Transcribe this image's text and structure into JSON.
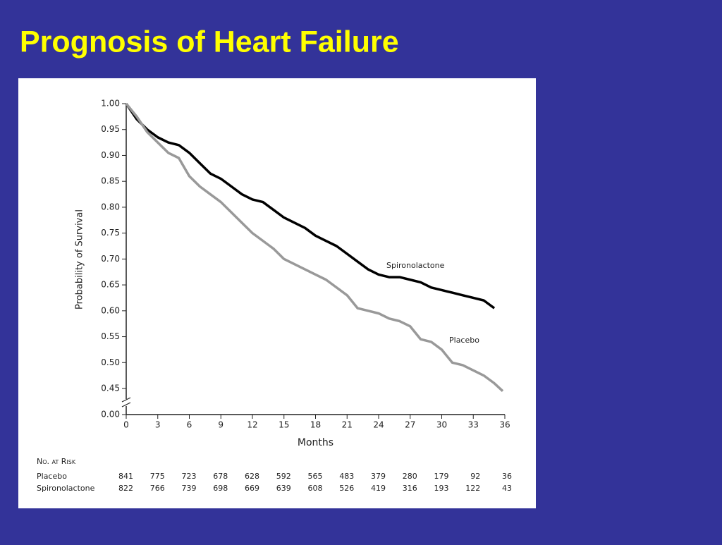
{
  "title": "Prognosis of Heart Failure",
  "chart_data": {
    "type": "line",
    "y_label": "Probability of Survival",
    "x_label": "Months",
    "xlim": [
      0,
      36
    ],
    "xticks": [
      0,
      3,
      6,
      9,
      12,
      15,
      18,
      21,
      24,
      27,
      30,
      33,
      36
    ],
    "ylim": [
      0.45,
      1.0
    ],
    "yticks": [
      {
        "value": 0.45,
        "label": "0.45"
      },
      {
        "value": 0.5,
        "label": "0.50"
      },
      {
        "value": 0.55,
        "label": "0.55"
      },
      {
        "value": 0.6,
        "label": "0.60"
      },
      {
        "value": 0.65,
        "label": "0.65"
      },
      {
        "value": 0.7,
        "label": "0.70"
      },
      {
        "value": 0.75,
        "label": "0.75"
      },
      {
        "value": 0.8,
        "label": "0.80"
      },
      {
        "value": 0.85,
        "label": "0.85"
      },
      {
        "value": 0.9,
        "label": "0.90"
      },
      {
        "value": 0.95,
        "label": "0.95"
      },
      {
        "value": 1.0,
        "label": "1.00"
      }
    ],
    "ybreak_tick": {
      "value": 0,
      "label": "0.00"
    },
    "series": [
      {
        "name": "Spironolactone",
        "color": "#000000",
        "x": [
          0,
          1,
          2,
          3,
          4,
          5,
          6,
          7,
          8,
          9,
          10,
          11,
          12,
          13,
          14,
          15,
          16,
          17,
          18,
          19,
          20,
          21,
          22,
          23,
          24,
          25,
          26,
          27,
          28,
          29,
          30,
          31,
          32,
          33,
          34,
          35
        ],
        "values": [
          1.0,
          0.97,
          0.95,
          0.935,
          0.925,
          0.92,
          0.905,
          0.885,
          0.865,
          0.855,
          0.84,
          0.825,
          0.815,
          0.81,
          0.795,
          0.78,
          0.77,
          0.76,
          0.745,
          0.735,
          0.725,
          0.71,
          0.695,
          0.68,
          0.67,
          0.665,
          0.665,
          0.66,
          0.655,
          0.645,
          0.64,
          0.635,
          0.63,
          0.625,
          0.62,
          0.605
        ]
      },
      {
        "name": "Placebo",
        "color": "#999999",
        "x": [
          0,
          1,
          2,
          3,
          4,
          5,
          6,
          7,
          8,
          9,
          10,
          11,
          12,
          13,
          14,
          15,
          16,
          17,
          18,
          19,
          20,
          21,
          22,
          23,
          24,
          25,
          26,
          27,
          28,
          29,
          30,
          31,
          32,
          33,
          34,
          35,
          35.8
        ],
        "values": [
          1.0,
          0.975,
          0.945,
          0.925,
          0.905,
          0.895,
          0.86,
          0.84,
          0.825,
          0.81,
          0.79,
          0.77,
          0.75,
          0.735,
          0.72,
          0.7,
          0.69,
          0.68,
          0.67,
          0.66,
          0.645,
          0.63,
          0.605,
          0.6,
          0.595,
          0.585,
          0.58,
          0.57,
          0.545,
          0.54,
          0.525,
          0.5,
          0.495,
          0.485,
          0.475,
          0.46,
          0.445
        ]
      }
    ],
    "risk_table": {
      "title": "No. at Risk",
      "rows": [
        {
          "name": "Placebo",
          "values": [
            841,
            775,
            723,
            678,
            628,
            592,
            565,
            483,
            379,
            280,
            179,
            92,
            36
          ]
        },
        {
          "name": "Spironolactone",
          "values": [
            822,
            766,
            739,
            698,
            669,
            639,
            608,
            526,
            419,
            316,
            193,
            122,
            43
          ]
        }
      ]
    }
  }
}
